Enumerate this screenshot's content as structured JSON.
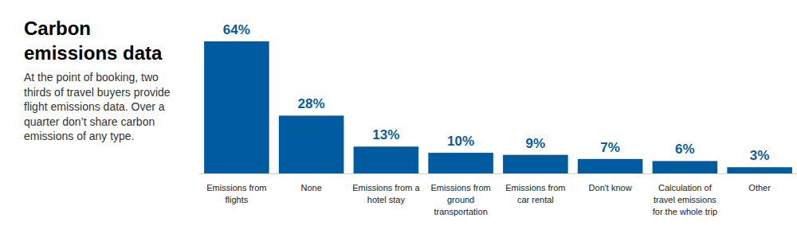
{
  "chart_data": {
    "type": "bar",
    "title": "Carbon emissions data",
    "subtitle": "At the point of booking, two thirds of travel buyers provide flight emissions data. Over a quarter don’t share carbon emissions of any type.",
    "categories": [
      "Emissions from flights",
      "None",
      "Emissions from a hotel stay",
      "Emissions from ground transportation",
      "Emissions from car rental",
      "Don't know",
      "Calculation of travel emissions for the whole trip",
      "Other"
    ],
    "values": [
      64,
      28,
      13,
      10,
      9,
      7,
      6,
      3
    ],
    "value_labels": [
      "64%",
      "28%",
      "13%",
      "10%",
      "9%",
      "7%",
      "6%",
      "3%"
    ],
    "color": "#005b9f",
    "ylim": [
      0,
      64
    ],
    "grid": false,
    "data_labels": true,
    "tick_labels": "x"
  }
}
